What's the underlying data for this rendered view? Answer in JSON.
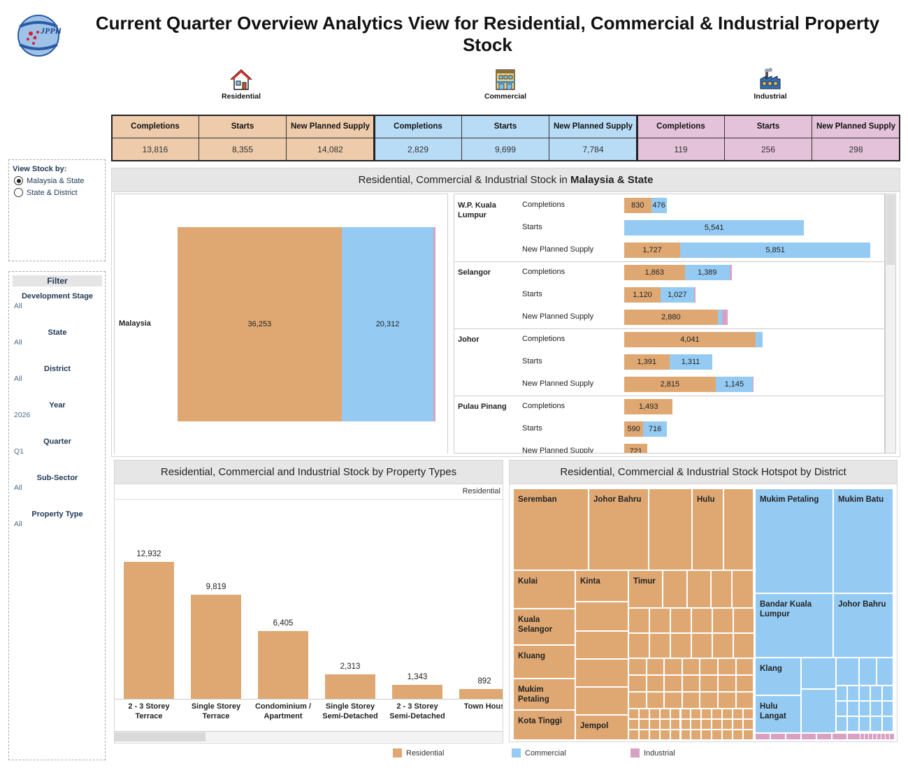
{
  "page": {
    "title": "Current Quarter Overview Analytics View for Residential, Commercial & Industrial Property Stock",
    "logo_text": "JPPH"
  },
  "colors": {
    "residential": "#dfa872",
    "commercial": "#95cbf3",
    "industrial": "#d8a1c4",
    "residential_header_bg": "#eecbab",
    "commercial_header_bg": "#b9dcf6",
    "industrial_header_bg": "#e4c3da"
  },
  "categories": [
    {
      "label": "Residential",
      "icon": "house-icon"
    },
    {
      "label": "Commercial",
      "icon": "shop-building-icon"
    },
    {
      "label": "Industrial",
      "icon": "factory-icon"
    }
  ],
  "kpis": {
    "headers": [
      "Completions",
      "Starts",
      "New Planned Supply"
    ],
    "residential": [
      "13,816",
      "8,355",
      "14,082"
    ],
    "commercial": [
      "2,829",
      "9,699",
      "7,784"
    ],
    "industrial": [
      "119",
      "256",
      "298"
    ]
  },
  "view_by": {
    "label": "View Stock by:",
    "options": [
      "Malaysia & State",
      "State & District"
    ],
    "selected": "Malaysia & State"
  },
  "filter": {
    "title": "Filter",
    "items": [
      {
        "label": "Development Stage",
        "value": "All"
      },
      {
        "label": "State",
        "value": "All"
      },
      {
        "label": "District",
        "value": "All"
      },
      {
        "label": "Year",
        "value": "2026"
      },
      {
        "label": "Quarter",
        "value": "Q1"
      },
      {
        "label": "Sub-Sector",
        "value": "All"
      },
      {
        "label": "Property Type",
        "value": "All"
      }
    ]
  },
  "stock_panel": {
    "title_prefix": "Residential, Commercial & Industrial Stock in ",
    "title_bold": "Malaysia & State",
    "malaysia": {
      "label": "Malaysia",
      "residential": 36253,
      "residential_label": "36,253",
      "commercial": 20312,
      "commercial_label": "20,312",
      "industrial": 418
    }
  },
  "state_metrics": [
    "Completions",
    "Starts",
    "New Planned Supply"
  ],
  "states": [
    {
      "name": "W.P. Kuala Lumpur",
      "rows": [
        {
          "res": 830,
          "res_label": "830",
          "com": 476,
          "com_label": "476",
          "ind": 0
        },
        {
          "res": 0,
          "res_label": "",
          "com": 5541,
          "com_label": "5,541",
          "ind": 0
        },
        {
          "res": 1727,
          "res_label": "1,727",
          "com": 5851,
          "com_label": "5,851",
          "ind": 0
        }
      ]
    },
    {
      "name": "Selangor",
      "rows": [
        {
          "res": 1863,
          "res_label": "1,863",
          "com": 1389,
          "com_label": "1,389",
          "ind": 60
        },
        {
          "res": 1120,
          "res_label": "1,120",
          "com": 1027,
          "com_label": "1,027",
          "ind": 40
        },
        {
          "res": 2880,
          "res_label": "2,880",
          "com": 140,
          "com_label": "",
          "ind": 160
        }
      ]
    },
    {
      "name": "Johor",
      "rows": [
        {
          "res": 4041,
          "res_label": "4,041",
          "com": 220,
          "com_label": "",
          "ind": 0
        },
        {
          "res": 1391,
          "res_label": "1,391",
          "com": 1311,
          "com_label": "1,311",
          "ind": 0
        },
        {
          "res": 2815,
          "res_label": "2,815",
          "com": 1145,
          "com_label": "1,145",
          "ind": 30
        }
      ]
    },
    {
      "name": "Pulau Pinang",
      "rows": [
        {
          "res": 1493,
          "res_label": "1,493",
          "com": 0,
          "com_label": "",
          "ind": 0
        },
        {
          "res": 590,
          "res_label": "590",
          "com": 716,
          "com_label": "716",
          "ind": 0
        },
        {
          "res": 721,
          "res_label": "721",
          "com": 0,
          "com_label": "",
          "ind": 0
        }
      ]
    }
  ],
  "property_types_panel": {
    "title": "Residential, Commercial and Industrial Stock by Property Types",
    "subheader": "Residential"
  },
  "chart_data": {
    "type": "bar",
    "categories": [
      "2 - 3 Storey Terrace",
      "Single Storey Terrace",
      "Condominium / Apartment",
      "Single Storey Semi-Detached",
      "2 - 3 Storey Semi-Detached",
      "Town Hous"
    ],
    "category_lines": [
      [
        "2 - 3 Storey",
        "Terrace"
      ],
      [
        "Single Storey",
        "Terrace"
      ],
      [
        "Condominium /",
        "Apartment"
      ],
      [
        "Single Storey",
        "Semi-Detached"
      ],
      [
        "2 - 3 Storey",
        "Semi-Detached"
      ],
      [
        "Town Hous",
        ""
      ]
    ],
    "values": [
      12932,
      9819,
      6405,
      2313,
      1343,
      892
    ],
    "labels": [
      "12,932",
      "9,819",
      "6,405",
      "2,313",
      "1,343",
      "892"
    ],
    "ylim": [
      0,
      13500
    ]
  },
  "hotspot_panel": {
    "title": "Residential, Commercial & Industrial Stock Hotspot by District",
    "labels": {
      "seremban": "Seremban",
      "johor_bahru": "Johor Bahru",
      "hulu": "Hulu",
      "kulai": "Kulai",
      "kinta": "Kinta",
      "timur": "Timur",
      "kuala_selangor": "Kuala Selangor",
      "kluang": "Kluang",
      "mukim_petaling_res": "Mukim Petaling",
      "kota_tinggi": "Kota Tinggi",
      "jempol": "Jempol",
      "mukim_petaling_com": "Mukim Petaling",
      "mukim_batu": "Mukim Batu",
      "bandar_kuala_lumpur": "Bandar Kuala Lumpur",
      "johor_bahru_com": "Johor Bahru",
      "klang": "Klang",
      "hulu_langat": "Hulu Langat"
    }
  },
  "legend": [
    "Residential",
    "Commercial",
    "Industrial"
  ]
}
